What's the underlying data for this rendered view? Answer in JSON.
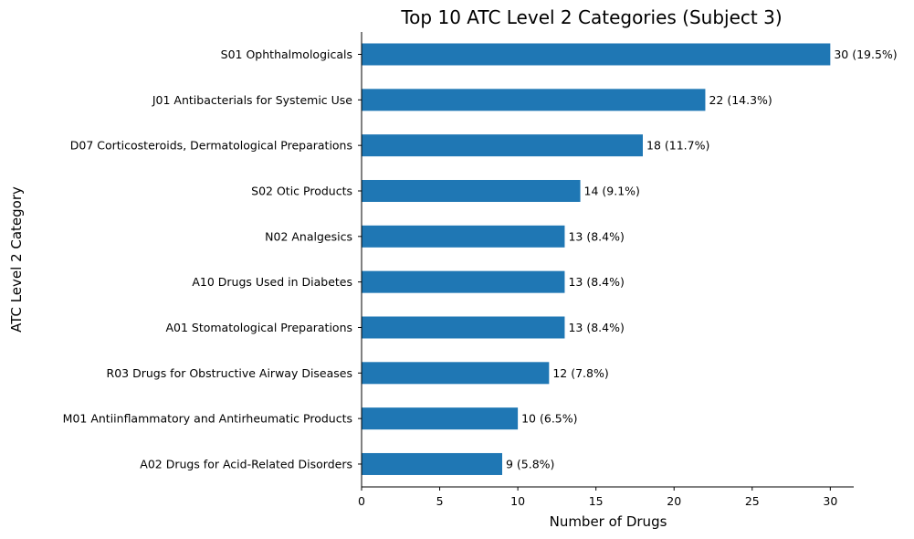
{
  "chart_data": {
    "type": "bar",
    "orientation": "horizontal",
    "title": "Top 10 ATC Level 2 Categories (Subject 3)",
    "xlabel": "Number of Drugs",
    "ylabel": "ATC Level 2 Category",
    "xlim": [
      0,
      31.5
    ],
    "xticks": [
      0,
      5,
      10,
      15,
      20,
      25,
      30
    ],
    "grid": false,
    "bar_color": "#1f77b4",
    "categories": [
      "S01 Ophthalmologicals",
      "J01 Antibacterials for Systemic Use",
      "D07 Corticosteroids, Dermatological Preparations",
      "S02 Otic Products",
      "N02 Analgesics",
      "A10 Drugs Used in Diabetes",
      "A01 Stomatological Preparations",
      "R03 Drugs for Obstructive Airway Diseases",
      "M01 Antiinflammatory and Antirheumatic Products",
      "A02 Drugs for Acid-Related Disorders"
    ],
    "values": [
      30,
      22,
      18,
      14,
      13,
      13,
      13,
      12,
      10,
      9
    ],
    "data_labels": [
      "30 (19.5%)",
      "22 (14.3%)",
      "18 (11.7%)",
      "14 (9.1%)",
      "13 (8.4%)",
      "13 (8.4%)",
      "13 (8.4%)",
      "12 (7.8%)",
      "10 (6.5%)",
      "9 (5.8%)"
    ]
  }
}
